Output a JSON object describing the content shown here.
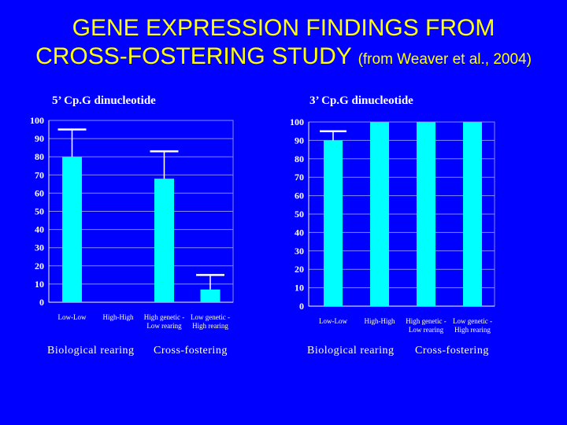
{
  "title": {
    "line1": "GENE EXPRESSION FINDINGS FROM",
    "line2": "CROSS-FOSTERING STUDY",
    "citation": "(from Weaver et al., 2004)"
  },
  "colors": {
    "background": "#0000FF",
    "title": "#FFFF00",
    "bar": "#00FFFF",
    "text": "#FFFFFF"
  },
  "chart_data": [
    {
      "type": "bar",
      "title": "5’ Cp.G dinucleotide",
      "categories": [
        "Low-Low",
        "High-High",
        "High genetic - Low rearing",
        "Low genetic - High rearing"
      ],
      "values": [
        80,
        null,
        68,
        7
      ],
      "error_upper": [
        95,
        null,
        83,
        15
      ],
      "ylim": [
        0,
        100
      ],
      "yticks": [
        0,
        10,
        20,
        30,
        40,
        50,
        60,
        70,
        80,
        90,
        100
      ],
      "group_labels": [
        "Biological rearing",
        "Cross-fostering"
      ]
    },
    {
      "type": "bar",
      "title": "3’ Cp.G dinucleotide",
      "categories": [
        "Low-Low",
        "High-High",
        "High genetic - Low rearing",
        "Low genetic - High rearing"
      ],
      "values": [
        90,
        100,
        100,
        100
      ],
      "error_upper": [
        95,
        null,
        null,
        null
      ],
      "ylim": [
        0,
        100
      ],
      "yticks": [
        0,
        10,
        20,
        30,
        40,
        50,
        60,
        70,
        80,
        90,
        100
      ],
      "group_labels": [
        "Biological rearing",
        "Cross-fostering"
      ]
    }
  ]
}
